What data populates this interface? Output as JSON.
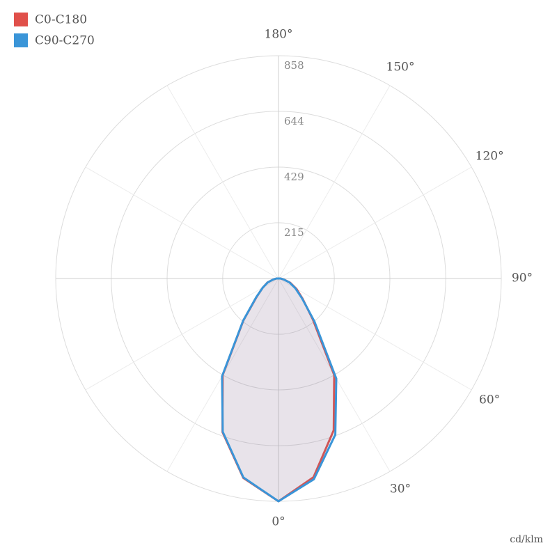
{
  "chart_data": {
    "type": "polar",
    "unit_label": "cd/klm",
    "x": [
      -90,
      -80,
      -70,
      -60,
      -50,
      -40,
      -30,
      -20,
      -10,
      0,
      10,
      20,
      30,
      40,
      50,
      60,
      70,
      80,
      90
    ],
    "series": [
      {
        "name": "C0-C180",
        "color": "#e0504a",
        "values": [
          8,
          20,
          45,
          70,
          110,
          210,
          430,
          630,
          780,
          858,
          777,
          622,
          429,
          206,
          121,
          80,
          48,
          21,
          8
        ]
      },
      {
        "name": "C90-C270",
        "color": "#3a95d8",
        "values": [
          8,
          20,
          44,
          70,
          112,
          212,
          435,
          628,
          778,
          858,
          785,
          640,
          445,
          215,
          118,
          75,
          45,
          20,
          8
        ]
      }
    ],
    "rlim": [
      0,
      858
    ],
    "rticks": [
      215,
      429,
      644,
      858
    ],
    "angle_ticks": [
      {
        "value": 0,
        "label": "0°"
      },
      {
        "value": 30,
        "label": "30°"
      },
      {
        "value": 60,
        "label": "60°"
      },
      {
        "value": 90,
        "label": "90°"
      },
      {
        "value": 120,
        "label": "120°"
      },
      {
        "value": 150,
        "label": "150°"
      },
      {
        "value": 180,
        "label": "180°"
      }
    ],
    "legend": "top-left",
    "grid": true
  }
}
